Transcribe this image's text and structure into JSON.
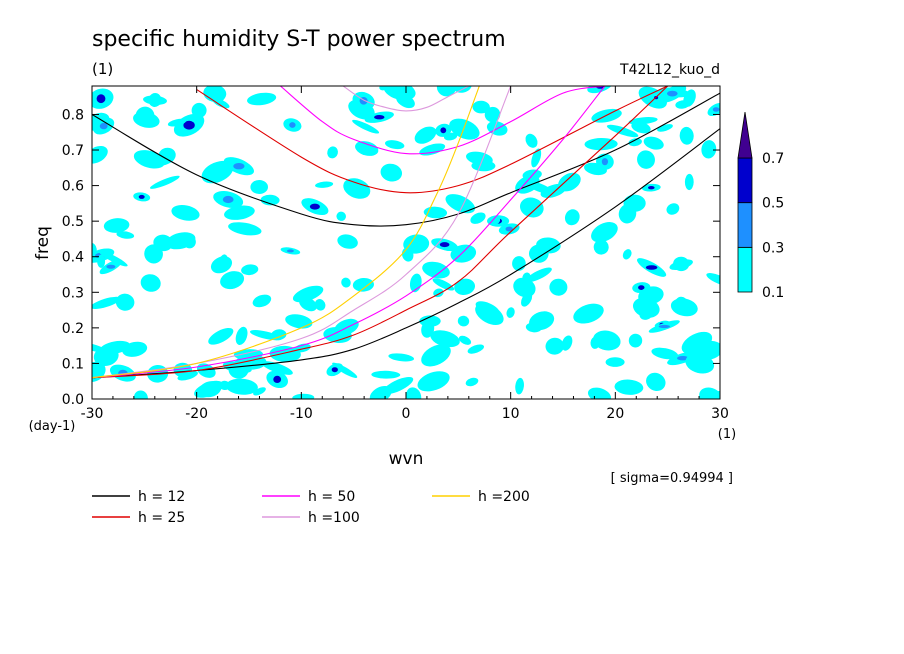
{
  "chart_data": {
    "type": "line",
    "title": "specific humidity S-T power spectrum",
    "title_units": "(1)",
    "run_label": "T42L12_kuo_d",
    "xlabel": "wvn",
    "x_units": "(1)",
    "ylabel": "freq",
    "y_units": "(day-1)",
    "sigma_label": "[ sigma=0.94994 ]",
    "xlim": [
      -30,
      30
    ],
    "ylim": [
      0,
      0.88
    ],
    "x_ticks": [
      "-30",
      "-20",
      "-10",
      "0",
      "10",
      "20",
      "30"
    ],
    "x_tick_values": [
      -30,
      -20,
      -10,
      0,
      10,
      20,
      30
    ],
    "y_ticks": [
      "0.0",
      "0.1",
      "0.2",
      "0.3",
      "0.4",
      "0.5",
      "0.6",
      "0.7",
      "0.8"
    ],
    "y_tick_values": [
      0,
      0.1,
      0.2,
      0.3,
      0.4,
      0.5,
      0.6,
      0.7,
      0.8
    ],
    "colorbar": {
      "levels": [
        "0.1",
        "0.3",
        "0.5",
        "0.7"
      ],
      "colors": [
        "#00ffff",
        "#1e90ff",
        "#0000cd",
        "#400090"
      ]
    },
    "series": [
      {
        "name": "h = 12",
        "color": "#000000",
        "dispersion_pair": "a",
        "x": [
          -30,
          -20,
          -10,
          -5,
          0,
          5,
          10,
          20,
          30
        ],
        "y": [
          0.8,
          0.63,
          0.52,
          0.49,
          0.49,
          0.52,
          0.58,
          0.7,
          0.86
        ]
      },
      {
        "name": "h = 12",
        "color": "#000000",
        "dispersion_pair": "b",
        "x": [
          -30,
          -20,
          -10,
          -5,
          0,
          5,
          10,
          20,
          30
        ],
        "y": [
          0.06,
          0.08,
          0.11,
          0.14,
          0.2,
          0.27,
          0.35,
          0.54,
          0.76
        ]
      },
      {
        "name": "h = 25",
        "color": "#e00000",
        "dispersion_pair": "a",
        "x": [
          -20,
          -10,
          -5,
          0,
          5,
          10,
          20,
          25
        ],
        "y": [
          0.87,
          0.68,
          0.61,
          0.58,
          0.6,
          0.66,
          0.81,
          0.88
        ]
      },
      {
        "name": "h = 25",
        "color": "#e00000",
        "dispersion_pair": "b",
        "x": [
          -30,
          -20,
          -10,
          -5,
          0,
          5,
          10,
          20,
          25
        ],
        "y": [
          0.06,
          0.08,
          0.14,
          0.18,
          0.25,
          0.33,
          0.47,
          0.74,
          0.88
        ]
      },
      {
        "name": "h = 50",
        "color": "#ff00ff",
        "dispersion_pair": "a",
        "x": [
          -12,
          -8,
          -5,
          0,
          5,
          10,
          15,
          19
        ],
        "y": [
          0.88,
          0.78,
          0.73,
          0.69,
          0.71,
          0.78,
          0.86,
          0.88
        ]
      },
      {
        "name": "h = 50",
        "color": "#ff00ff",
        "dispersion_pair": "b",
        "x": [
          -30,
          -20,
          -10,
          -5,
          0,
          5,
          10,
          15,
          19
        ],
        "y": [
          0.06,
          0.09,
          0.15,
          0.21,
          0.29,
          0.4,
          0.56,
          0.73,
          0.88
        ]
      },
      {
        "name": "h =100",
        "color": "#dd99dd",
        "dispersion_pair": "a",
        "x": [
          -6,
          -4,
          -2,
          0,
          2,
          4,
          6
        ],
        "y": [
          0.88,
          0.84,
          0.82,
          0.81,
          0.82,
          0.85,
          0.88
        ]
      },
      {
        "name": "h =100",
        "color": "#dd99dd",
        "dispersion_pair": "b",
        "x": [
          -30,
          -20,
          -10,
          -5,
          0,
          5,
          10
        ],
        "y": [
          0.06,
          0.1,
          0.17,
          0.25,
          0.35,
          0.52,
          0.88
        ]
      },
      {
        "name": "h =200",
        "color": "#ffd000",
        "dispersion_pair": "b",
        "x": [
          -30,
          -20,
          -10,
          -5,
          0,
          3,
          5,
          7
        ],
        "y": [
          0.06,
          0.1,
          0.2,
          0.29,
          0.42,
          0.58,
          0.72,
          0.88
        ]
      }
    ],
    "legend": [
      {
        "label": "h = 12",
        "color": "#000000"
      },
      {
        "label": "h = 25",
        "color": "#e00000"
      },
      {
        "label": "h = 50",
        "color": "#ff00ff"
      },
      {
        "label": "h =100",
        "color": "#dd99dd"
      },
      {
        "label": "h =200",
        "color": "#ffd000"
      }
    ]
  }
}
